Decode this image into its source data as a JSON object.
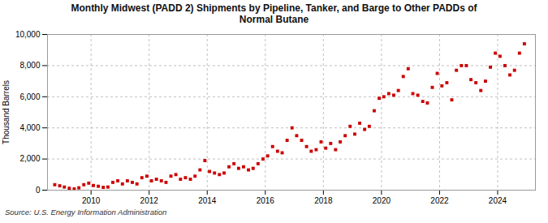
{
  "chart_data": {
    "type": "scatter",
    "title": "Monthly Midwest (PADD 2) Shipments by Pipeline, Tanker, and Barge to Other PADDs of\nNormal Butane",
    "ylabel": "Thousand Barrels",
    "source": "Source: U.S. Energy Information Administration",
    "color": "#cc0000",
    "marker": "square",
    "grid": true,
    "xlim": [
      2008.5,
      2025.3
    ],
    "xticks": [
      2010,
      2012,
      2014,
      2016,
      2018,
      2020,
      2022,
      2024
    ],
    "ylim": [
      0,
      10000
    ],
    "yticks": [
      0,
      {
        "value": 2000,
        "label": "2,000"
      },
      {
        "value": 4000,
        "label": "4,000"
      },
      {
        "value": 6000,
        "label": "6,000"
      },
      {
        "value": 8000,
        "label": "8,000"
      },
      {
        "value": 10000,
        "label": "10,000"
      }
    ],
    "x": [
      2008.75,
      2008.92,
      2009.08,
      2009.25,
      2009.42,
      2009.58,
      2009.75,
      2009.92,
      2010.08,
      2010.25,
      2010.42,
      2010.58,
      2010.75,
      2010.92,
      2011.08,
      2011.25,
      2011.42,
      2011.58,
      2011.75,
      2011.92,
      2012.08,
      2012.25,
      2012.42,
      2012.58,
      2012.75,
      2012.92,
      2013.08,
      2013.25,
      2013.42,
      2013.58,
      2013.75,
      2013.92,
      2014.08,
      2014.25,
      2014.42,
      2014.58,
      2014.75,
      2014.92,
      2015.08,
      2015.25,
      2015.42,
      2015.58,
      2015.75,
      2015.92,
      2016.08,
      2016.25,
      2016.42,
      2016.58,
      2016.75,
      2016.92,
      2017.08,
      2017.25,
      2017.42,
      2017.58,
      2017.75,
      2017.92,
      2018.08,
      2018.25,
      2018.42,
      2018.58,
      2018.75,
      2018.92,
      2019.08,
      2019.25,
      2019.42,
      2019.58,
      2019.75,
      2019.92,
      2020.08,
      2020.25,
      2020.42,
      2020.58,
      2020.75,
      2020.92,
      2021.08,
      2021.25,
      2021.42,
      2021.58,
      2021.75,
      2021.92,
      2022.08,
      2022.25,
      2022.42,
      2022.58,
      2022.75,
      2022.92,
      2023.08,
      2023.25,
      2023.42,
      2023.58,
      2023.75,
      2023.92,
      2024.08,
      2024.25,
      2024.42,
      2024.58,
      2024.75,
      2024.92
    ],
    "values": [
      350,
      280,
      200,
      120,
      80,
      150,
      350,
      450,
      300,
      250,
      180,
      200,
      500,
      600,
      400,
      600,
      500,
      400,
      800,
      900,
      600,
      700,
      600,
      500,
      900,
      1000,
      700,
      800,
      700,
      900,
      1300,
      1900,
      1200,
      1100,
      1000,
      1100,
      1500,
      1700,
      1400,
      1500,
      1300,
      1400,
      1700,
      2000,
      2200,
      2800,
      2500,
      2400,
      3200,
      4000,
      3500,
      3200,
      2800,
      2500,
      2600,
      3100,
      2700,
      3000,
      2600,
      3100,
      3500,
      4100,
      3600,
      4300,
      3900,
      4100,
      5100,
      5900,
      6000,
      6200,
      6100,
      6400,
      7300,
      7800,
      6200,
      6100,
      5700,
      5600,
      6600,
      7500,
      6700,
      6900,
      5800,
      7700,
      8000,
      8000,
      7100,
      6900,
      6400,
      7000,
      7900,
      8800,
      8600,
      8000,
      7400,
      7700,
      8800,
      9400
    ]
  }
}
